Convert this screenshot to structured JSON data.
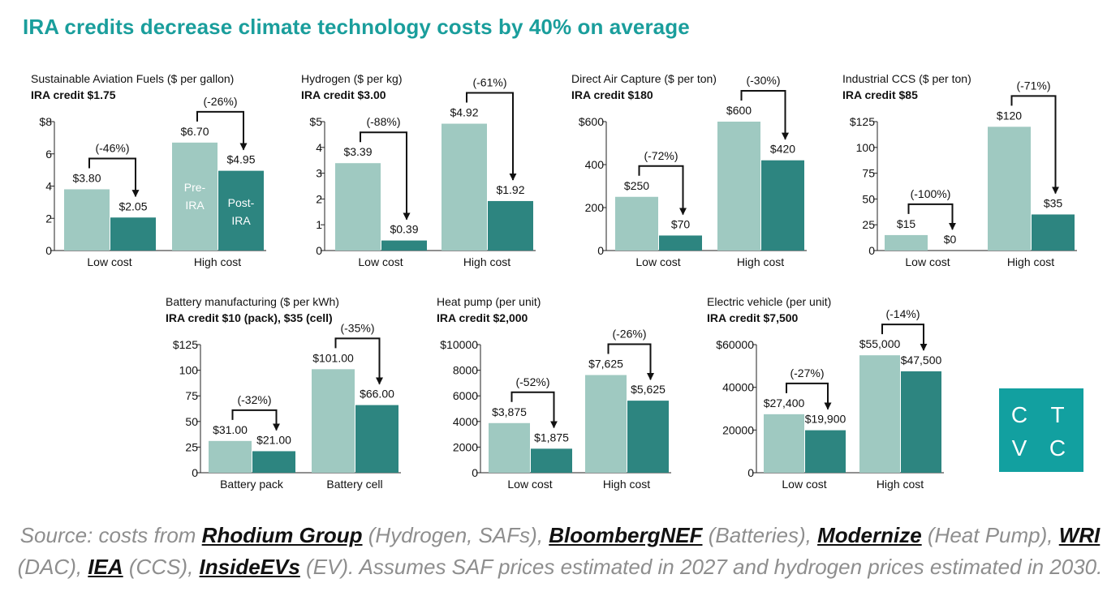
{
  "title": "IRA credits decrease climate technology costs by 40% on average",
  "colors": {
    "title": "#1a9e9c",
    "pre_ira": "#9fc9c1",
    "post_ira": "#2d8580",
    "logo_bg": "#12a0a0",
    "source_text": "#8e8e8e"
  },
  "chart_data": [
    {
      "type": "bar",
      "title": "Sustainable Aviation Fuels ($ per gallon)",
      "subtitle": "IRA credit $1.75",
      "categories": [
        "Low cost",
        "High cost"
      ],
      "series": [
        {
          "name": "Pre-IRA",
          "values": [
            3.8,
            6.7
          ],
          "labels": [
            "$3.80",
            "$6.70"
          ]
        },
        {
          "name": "Post-IRA",
          "values": [
            2.05,
            4.95
          ],
          "labels": [
            "$2.05",
            "$4.95"
          ]
        }
      ],
      "changes": [
        "(-46%)",
        "(-26%)"
      ],
      "yticks": [
        "$8",
        "6",
        "4",
        "2",
        "0"
      ],
      "ylim": [
        0,
        8
      ],
      "in_bar_labels": true
    },
    {
      "type": "bar",
      "title": "Hydrogen ($ per kg)",
      "subtitle": "IRA credit $3.00",
      "categories": [
        "Low cost",
        "High cost"
      ],
      "series": [
        {
          "name": "Pre-IRA",
          "values": [
            3.39,
            4.92
          ],
          "labels": [
            "$3.39",
            "$4.92"
          ]
        },
        {
          "name": "Post-IRA",
          "values": [
            0.39,
            1.92
          ],
          "labels": [
            "$0.39",
            "$1.92"
          ]
        }
      ],
      "changes": [
        "(-88%)",
        "(-61%)"
      ],
      "yticks": [
        "$5",
        "4",
        "3",
        "2",
        "1",
        "0"
      ],
      "ylim": [
        0,
        5
      ]
    },
    {
      "type": "bar",
      "title": "Direct Air Capture ($ per ton)",
      "subtitle": "IRA credit $180",
      "categories": [
        "Low cost",
        "High cost"
      ],
      "series": [
        {
          "name": "Pre-IRA",
          "values": [
            250,
            600
          ],
          "labels": [
            "$250",
            "$600"
          ]
        },
        {
          "name": "Post-IRA",
          "values": [
            70,
            420
          ],
          "labels": [
            "$70",
            "$420"
          ]
        }
      ],
      "changes": [
        "(-72%)",
        "(-30%)"
      ],
      "yticks": [
        "$600",
        "400",
        "200",
        "0"
      ],
      "ylim": [
        0,
        600
      ]
    },
    {
      "type": "bar",
      "title": "Industrial CCS ($ per ton)",
      "subtitle": "IRA credit $85",
      "categories": [
        "Low cost",
        "High cost"
      ],
      "series": [
        {
          "name": "Pre-IRA",
          "values": [
            15,
            120
          ],
          "labels": [
            "$15",
            "$120"
          ]
        },
        {
          "name": "Post-IRA",
          "values": [
            0,
            35
          ],
          "labels": [
            "$0",
            "$35"
          ]
        }
      ],
      "changes": [
        "(-100%)",
        "(-71%)"
      ],
      "yticks": [
        "$125",
        "100",
        "75",
        "50",
        "25",
        "0"
      ],
      "ylim": [
        0,
        125
      ]
    },
    {
      "type": "bar",
      "title": "Battery manufacturing ($ per kWh)",
      "subtitle": "IRA credit $10 (pack), $35 (cell)",
      "categories": [
        "Battery pack",
        "Battery cell"
      ],
      "series": [
        {
          "name": "Pre-IRA",
          "values": [
            31,
            101
          ],
          "labels": [
            "$31.00",
            "$101.00"
          ]
        },
        {
          "name": "Post-IRA",
          "values": [
            21,
            66
          ],
          "labels": [
            "$21.00",
            "$66.00"
          ]
        }
      ],
      "changes": [
        "(-32%)",
        "(-35%)"
      ],
      "yticks": [
        "$125",
        "100",
        "75",
        "50",
        "25",
        "0"
      ],
      "ylim": [
        0,
        125
      ]
    },
    {
      "type": "bar",
      "title": "Heat pump (per unit)",
      "subtitle": "IRA credit $2,000",
      "categories": [
        "Low cost",
        "High cost"
      ],
      "series": [
        {
          "name": "Pre-IRA",
          "values": [
            3875,
            7625
          ],
          "labels": [
            "$3,875",
            "$7,625"
          ]
        },
        {
          "name": "Post-IRA",
          "values": [
            1875,
            5625
          ],
          "labels": [
            "$1,875",
            "$5,625"
          ]
        }
      ],
      "changes": [
        "(-52%)",
        "(-26%)"
      ],
      "yticks": [
        "$10000",
        "8000",
        "6000",
        "4000",
        "2000",
        "0"
      ],
      "ylim": [
        0,
        10000
      ]
    },
    {
      "type": "bar",
      "title": "Electric vehicle (per unit)",
      "subtitle": "IRA credit $7,500",
      "categories": [
        "Low cost",
        "High cost"
      ],
      "series": [
        {
          "name": "Pre-IRA",
          "values": [
            27400,
            55000
          ],
          "labels": [
            "$27,400",
            "$55,000"
          ]
        },
        {
          "name": "Post-IRA",
          "values": [
            19900,
            47500
          ],
          "labels": [
            "$19,900",
            "$47,500"
          ]
        }
      ],
      "changes": [
        "(-27%)",
        "(-14%)"
      ],
      "yticks": [
        "$60000",
        "40000",
        "20000",
        "0"
      ],
      "ylim": [
        0,
        60000
      ]
    }
  ],
  "logo": {
    "letters": [
      "C",
      "T",
      "V",
      "C"
    ]
  },
  "source": {
    "prefix": "Source: costs from ",
    "rhodium": "Rhodium Group",
    "t1": " (Hydrogen, SAFs), ",
    "bnef": "BloombergNEF",
    "t2": " (Batteries), ",
    "modernize": "Modernize",
    "t3": " (Heat Pump), ",
    "wri": "WRI",
    "t4": " (DAC), ",
    "iea": "IEA",
    "t5": " (CCS), ",
    "insideevs": "InsideEVs",
    "t6": " (EV). Assumes SAF prices estimated in 2027 and hydrogen prices estimated in 2030."
  }
}
